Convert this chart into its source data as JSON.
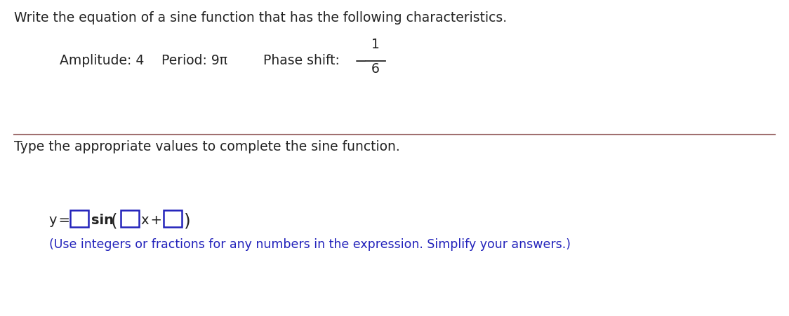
{
  "title_text": "Write the equation of a sine function that has the following characteristics.",
  "amplitude_label": "Amplitude: 4",
  "period_label": "Period: 9π",
  "phase_shift_label": "Phase shift:",
  "phase_minus": "−",
  "phase_numerator": "1",
  "phase_denominator": "6",
  "divider_color": "#a07070",
  "instruction_text": "Type the appropriate values to complete the sine function.",
  "hint_text": "(Use integers or fractions for any numbers in the expression. Simplify your answers.)",
  "title_fontsize": 13.5,
  "body_fontsize": 13.5,
  "eq_fontsize": 14,
  "sin_fontsize": 14,
  "hint_fontsize": 12.5,
  "box_color": "#2222bb",
  "hint_color": "#2222bb",
  "text_color": "#222222",
  "bg_color": "#ffffff"
}
